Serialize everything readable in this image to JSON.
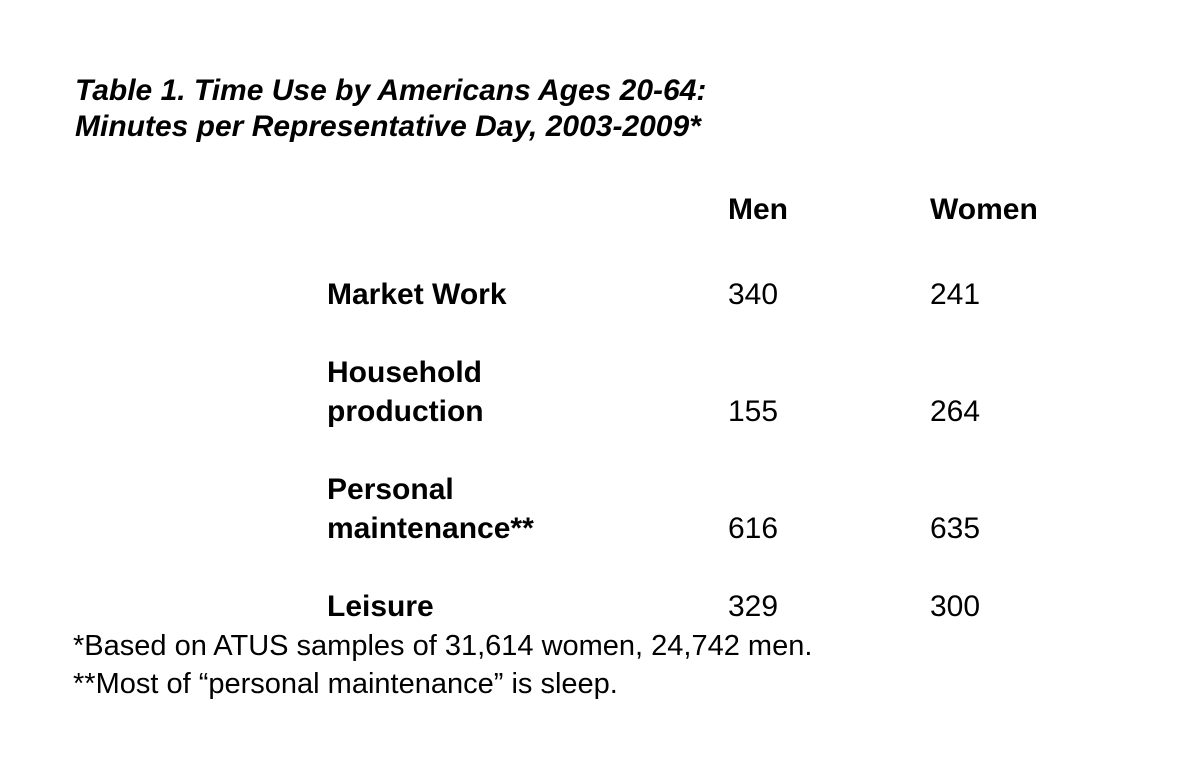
{
  "colors": {
    "background": "#ffffff",
    "text": "#000000"
  },
  "title": {
    "line1": "Table 1. Time Use by Americans Ages 20-64:",
    "line2": "Minutes per Representative Day, 2003-2009*"
  },
  "table": {
    "column_headers": {
      "men": "Men",
      "women": "Women"
    },
    "rows": [
      {
        "label": "Market Work",
        "men": "340",
        "women": "241"
      },
      {
        "label": "Household\nproduction",
        "men": "155",
        "women": "264"
      },
      {
        "label": "Personal\nmaintenance**",
        "men": "616",
        "women": "635"
      },
      {
        "label": "Leisure",
        "men": "329",
        "women": "300"
      }
    ]
  },
  "footnotes": {
    "sample": "*Based on ATUS samples of 31,614 women, 24,742 men.",
    "sleep": "**Most of “personal maintenance” is sleep."
  }
}
